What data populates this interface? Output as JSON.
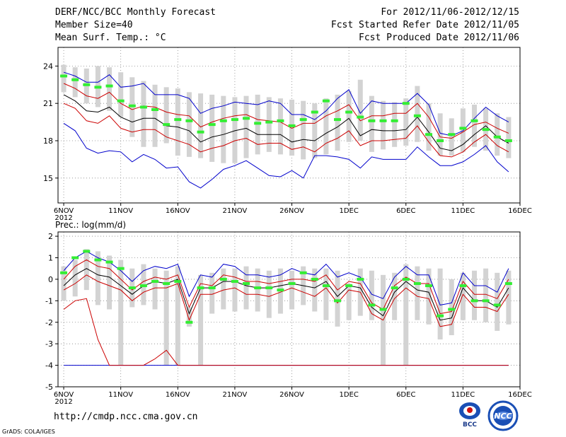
{
  "header": {
    "title": "DERF/NCC/BCC Monthly Forecast",
    "member_size": "Member Size=40",
    "variable": "Mean Surf. Temp.: °C",
    "period": "For 2012/11/06-2012/12/15",
    "refer_date": "Fcst Started Refer Date 2012/11/05",
    "produced_date": "Fcst Produced Date 2012/11/06"
  },
  "footer": {
    "url": "http://cmdp.ncc.cma.gov.cn",
    "grads": "GrADS: COLA/IGES",
    "logo_bcc": "BCC",
    "logo_ncc": "NCC"
  },
  "colors": {
    "bar": "#d3d3d3",
    "mean": "#000000",
    "inner": "#cc0000",
    "outer": "#0000cc",
    "marker": "#33ee33",
    "grid": "#888888"
  },
  "chart_data": [
    {
      "type": "line",
      "title": "Mean Surf. Temp.: °C",
      "xlabel": "",
      "ylabel": "",
      "x": [
        1,
        2,
        3,
        4,
        5,
        6,
        7,
        8,
        9,
        10,
        11,
        12,
        13,
        14,
        15,
        16,
        17,
        18,
        19,
        20,
        21,
        22,
        23,
        24,
        25,
        26,
        27,
        28,
        29,
        30,
        31,
        32,
        33,
        34,
        35,
        36,
        37,
        38,
        39,
        40
      ],
      "xticks": [
        {
          "x": 1,
          "label": "6NOV"
        },
        {
          "x": 6,
          "label": "11NOV"
        },
        {
          "x": 11,
          "label": "16NOV"
        },
        {
          "x": 16,
          "label": "21NOV"
        },
        {
          "x": 21,
          "label": "26NOV"
        },
        {
          "x": 26,
          "label": "1DEC"
        },
        {
          "x": 31,
          "label": "6DEC"
        },
        {
          "x": 36,
          "label": "11DEC"
        },
        {
          "x": 41,
          "label": "16DEC"
        }
      ],
      "year_label": "2012",
      "xlim": [
        0.5,
        41
      ],
      "ylim": [
        13,
        25.5
      ],
      "yticks": [
        15,
        18,
        21,
        24
      ],
      "series": [
        {
          "name": "spread_top",
          "values": [
            24.1,
            23.9,
            23.8,
            24.0,
            23.9,
            23.5,
            23.1,
            22.8,
            22.5,
            22.3,
            22.2,
            21.9,
            21.8,
            21.7,
            21.6,
            21.5,
            21.6,
            21.7,
            21.5,
            21.4,
            21.3,
            21.2,
            21.0,
            21.4,
            21.7,
            22.0,
            22.9,
            21.6,
            21.2,
            21.1,
            21.4,
            22.4,
            21.0,
            20.2,
            19.8,
            20.6,
            20.9,
            20.6,
            20.2,
            19.9
          ]
        },
        {
          "name": "spread_bottom",
          "values": [
            21.9,
            21.5,
            21.0,
            20.7,
            20.4,
            19.9,
            18.3,
            17.5,
            17.5,
            17.8,
            16.8,
            16.7,
            16.6,
            16.3,
            16.2,
            16.2,
            16.6,
            16.9,
            17.1,
            16.9,
            16.8,
            16.5,
            16.6,
            16.9,
            17.2,
            17.9,
            18.0,
            17.1,
            17.3,
            17.5,
            17.6,
            17.9,
            17.2,
            16.8,
            16.8,
            17.1,
            17.5,
            17.2,
            16.8,
            16.6
          ]
        },
        {
          "name": "marker",
          "values": [
            23.2,
            22.9,
            22.5,
            22.3,
            22.4,
            21.2,
            20.8,
            20.7,
            20.5,
            19.3,
            19.7,
            19.6,
            18.7,
            19.3,
            19.6,
            19.7,
            19.8,
            19.4,
            19.5,
            19.6,
            19.2,
            19.7,
            20.3,
            21.2,
            19.7,
            20.3,
            19.9,
            19.6,
            19.6,
            19.6,
            21.0,
            20.0,
            18.5,
            18.0,
            18.5,
            19.0,
            19.6,
            18.9,
            18.3,
            18.0
          ]
        },
        {
          "name": "outer_top",
          "values": [
            23.5,
            23.2,
            22.7,
            22.7,
            23.3,
            22.3,
            22.4,
            22.6,
            21.7,
            21.7,
            21.7,
            21.4,
            20.2,
            20.6,
            20.8,
            21.1,
            21.0,
            20.9,
            21.2,
            21.0,
            20.1,
            20.1,
            19.7,
            20.4,
            21.4,
            22.1,
            20.2,
            21.2,
            21.0,
            21.0,
            21.0,
            21.8,
            20.9,
            18.6,
            18.4,
            18.8,
            19.8,
            20.7,
            20.0,
            19.5
          ]
        },
        {
          "name": "inner_top",
          "values": [
            22.6,
            22.2,
            21.6,
            21.4,
            21.9,
            21.0,
            20.5,
            20.8,
            20.7,
            20.3,
            20.1,
            20.0,
            19.1,
            19.5,
            19.8,
            20.0,
            20.1,
            19.7,
            19.6,
            19.5,
            19.0,
            19.4,
            19.4,
            20.0,
            20.4,
            20.9,
            19.6,
            20.0,
            20.0,
            20.2,
            20.2,
            21.0,
            19.9,
            18.3,
            18.2,
            18.7,
            19.3,
            19.5,
            19.0,
            18.6
          ]
        },
        {
          "name": "mean",
          "values": [
            21.7,
            21.2,
            20.4,
            20.3,
            20.7,
            19.9,
            19.5,
            19.8,
            19.8,
            19.2,
            19.1,
            18.8,
            17.9,
            18.3,
            18.5,
            18.8,
            19.0,
            18.5,
            18.5,
            18.5,
            17.9,
            18.1,
            18.0,
            18.6,
            19.1,
            19.8,
            18.4,
            18.9,
            18.8,
            18.8,
            18.9,
            19.9,
            18.7,
            17.4,
            17.2,
            17.7,
            18.5,
            19.2,
            18.3,
            17.8
          ]
        },
        {
          "name": "inner_bottom",
          "values": [
            21.0,
            20.6,
            19.6,
            19.4,
            20.0,
            19.0,
            18.7,
            18.9,
            18.9,
            18.3,
            18.0,
            17.7,
            17.1,
            17.4,
            17.6,
            18.0,
            18.2,
            17.7,
            17.8,
            17.8,
            17.3,
            17.5,
            17.1,
            17.8,
            18.2,
            18.8,
            17.6,
            18.0,
            18.0,
            18.1,
            18.2,
            19.2,
            17.9,
            16.8,
            16.7,
            17.1,
            17.9,
            18.5,
            17.6,
            17.1
          ]
        },
        {
          "name": "outer_bottom",
          "values": [
            19.4,
            18.8,
            17.4,
            17.0,
            17.2,
            17.1,
            16.3,
            16.9,
            16.5,
            15.8,
            15.9,
            14.7,
            14.2,
            14.9,
            15.7,
            16.0,
            16.4,
            15.8,
            15.2,
            15.1,
            15.6,
            15.0,
            16.8,
            16.8,
            16.7,
            16.5,
            15.8,
            16.7,
            16.5,
            16.5,
            16.5,
            17.5,
            16.7,
            16.0,
            16.0,
            16.3,
            16.9,
            17.6,
            16.3,
            15.5
          ]
        }
      ]
    },
    {
      "type": "line",
      "title": "Prec.: log(mm/d)",
      "xlabel": "",
      "ylabel": "",
      "x": [
        1,
        2,
        3,
        4,
        5,
        6,
        7,
        8,
        9,
        10,
        11,
        12,
        13,
        14,
        15,
        16,
        17,
        18,
        19,
        20,
        21,
        22,
        23,
        24,
        25,
        26,
        27,
        28,
        29,
        30,
        31,
        32,
        33,
        34,
        35,
        36,
        37,
        38,
        39,
        40
      ],
      "xticks": [
        {
          "x": 1,
          "label": "6NOV"
        },
        {
          "x": 6,
          "label": "11NOV"
        },
        {
          "x": 11,
          "label": "16NOV"
        },
        {
          "x": 16,
          "label": "21NOV"
        },
        {
          "x": 21,
          "label": "26NOV"
        },
        {
          "x": 26,
          "label": "1DEC"
        },
        {
          "x": 31,
          "label": "6DEC"
        },
        {
          "x": 36,
          "label": "11DEC"
        },
        {
          "x": 41,
          "label": "16DEC"
        }
      ],
      "year_label": "2012",
      "xlim": [
        0.5,
        41
      ],
      "ylim": [
        -5,
        2.2
      ],
      "yticks": [
        -5,
        -4,
        -3,
        -2,
        -1,
        0,
        1,
        2
      ],
      "series": [
        {
          "name": "spread_top",
          "values": [
            0.6,
            0.9,
            1.4,
            1.3,
            1.1,
            0.9,
            0.5,
            0.7,
            0.5,
            0.4,
            0.6,
            -1.3,
            0.2,
            0.3,
            0.5,
            0.5,
            0.6,
            0.5,
            0.4,
            0.5,
            0.4,
            0.6,
            0.5,
            0.5,
            0.4,
            -0.2,
            0.5,
            0.4,
            0.2,
            0.3,
            0.7,
            0.6,
            0.5,
            0.5,
            0.0,
            0.3,
            0.4,
            0.5,
            0.3,
            0.4
          ]
        },
        {
          "name": "spread_bottom",
          "values": [
            -1.0,
            -0.8,
            -0.5,
            -1.2,
            -1.4,
            -4.0,
            -1.3,
            -1.2,
            -1.4,
            -4.0,
            -4.0,
            -2.2,
            -4.0,
            -1.6,
            -1.4,
            -1.5,
            -1.4,
            -1.5,
            -1.8,
            -1.6,
            -1.4,
            -1.2,
            -1.5,
            -1.9,
            -2.2,
            -1.9,
            -1.7,
            -1.9,
            -4.0,
            -1.9,
            -4.0,
            -1.9,
            -2.1,
            -2.8,
            -2.6,
            -1.9,
            -1.9,
            -2.0,
            -2.4,
            -2.1
          ]
        },
        {
          "name": "marker",
          "values": [
            0.3,
            1.0,
            1.3,
            0.9,
            0.8,
            0.5,
            -0.4,
            -0.3,
            -0.1,
            -0.2,
            -0.1,
            -2.0,
            -0.4,
            -0.4,
            0.0,
            -0.1,
            -0.2,
            -0.4,
            -0.4,
            -0.5,
            -0.2,
            0.3,
            0.0,
            -0.3,
            -1.0,
            -0.3,
            0.0,
            -1.2,
            -1.4,
            -0.4,
            0.0,
            -0.2,
            -0.3,
            -1.7,
            -1.4,
            -0.3,
            -1.0,
            -1.0,
            -1.2,
            -0.2
          ]
        },
        {
          "name": "outer_top",
          "values": [
            0.4,
            1.0,
            1.3,
            1.0,
            0.8,
            0.4,
            -0.1,
            0.4,
            0.6,
            0.5,
            0.7,
            -0.8,
            0.2,
            0.1,
            0.7,
            0.6,
            0.2,
            0.2,
            0.1,
            0.2,
            0.5,
            0.3,
            0.2,
            0.7,
            0.1,
            0.3,
            0.1,
            -0.7,
            -0.9,
            0.1,
            0.6,
            0.2,
            0.2,
            -1.2,
            -1.1,
            0.3,
            -0.3,
            -0.3,
            -0.6,
            0.5
          ]
        },
        {
          "name": "inner_top",
          "values": [
            0.0,
            0.6,
            0.9,
            0.6,
            0.5,
            0.0,
            -0.5,
            -0.1,
            0.1,
            0.0,
            0.2,
            -1.3,
            -0.2,
            -0.3,
            0.2,
            0.1,
            -0.1,
            -0.1,
            -0.2,
            -0.1,
            0.0,
            0.0,
            -0.1,
            0.2,
            -0.5,
            -0.1,
            -0.2,
            -1.1,
            -1.4,
            -0.3,
            0.1,
            -0.2,
            -0.2,
            -1.6,
            -1.5,
            -0.1,
            -0.7,
            -0.7,
            -0.9,
            0.0
          ]
        },
        {
          "name": "mean",
          "values": [
            -0.3,
            0.2,
            0.5,
            0.2,
            0.1,
            -0.3,
            -0.7,
            -0.3,
            -0.1,
            -0.2,
            0.0,
            -1.6,
            -0.4,
            -0.4,
            -0.1,
            -0.1,
            -0.3,
            -0.4,
            -0.4,
            -0.3,
            -0.2,
            -0.3,
            -0.4,
            -0.1,
            -0.8,
            -0.3,
            -0.4,
            -1.3,
            -1.7,
            -0.6,
            -0.1,
            -0.5,
            -0.6,
            -1.9,
            -1.8,
            -0.4,
            -1.0,
            -1.0,
            -1.3,
            -0.4
          ]
        },
        {
          "name": "inner_bottom",
          "values": [
            -0.5,
            -0.2,
            0.2,
            -0.1,
            -0.3,
            -0.5,
            -1.0,
            -0.6,
            -0.4,
            -0.4,
            -0.2,
            -1.9,
            -0.7,
            -0.7,
            -0.5,
            -0.4,
            -0.7,
            -0.7,
            -0.8,
            -0.6,
            -0.4,
            -0.6,
            -0.8,
            -0.4,
            -1.1,
            -0.5,
            -0.6,
            -1.6,
            -1.9,
            -0.9,
            -0.4,
            -0.8,
            -0.9,
            -2.2,
            -2.1,
            -0.7,
            -1.3,
            -1.3,
            -1.5,
            -0.7
          ]
        },
        {
          "name": "outer_bottom",
          "values": [
            -1.4,
            -1.0,
            -0.9,
            -2.8,
            -4.0,
            -4.0,
            -4.0,
            -4.0,
            -3.7,
            -3.3,
            -4.0,
            -4.0,
            -4.0,
            -4.0,
            -4.0,
            -4.0,
            -4.0,
            -4.0,
            -4.0,
            -4.0,
            -4.0,
            -4.0,
            -4.0,
            -4.0,
            -4.0,
            -4.0,
            -4.0,
            -4.0,
            -4.0,
            -4.0,
            -4.0,
            -4.0,
            -4.0,
            -4.0,
            -4.0,
            -4.0,
            -4.0,
            -4.0,
            -4.0,
            -4.0
          ]
        },
        {
          "name": "floor",
          "values": [
            -4.0,
            -4.0,
            -4.0,
            -4.0,
            -4.0,
            -4.0,
            -4.0,
            -4.0,
            -4.0,
            -4.0,
            -4.0,
            -4.0,
            -4.0,
            -4.0,
            -4.0,
            -4.0,
            -4.0,
            -4.0,
            -4.0,
            -4.0,
            -4.0,
            -4.0,
            -4.0,
            -4.0,
            -4.0,
            -4.0,
            -4.0,
            -4.0,
            -4.0,
            -4.0,
            -4.0,
            -4.0,
            -4.0,
            -4.0,
            -4.0,
            -4.0,
            -4.0,
            -4.0,
            -4.0,
            -4.0
          ]
        }
      ]
    }
  ]
}
